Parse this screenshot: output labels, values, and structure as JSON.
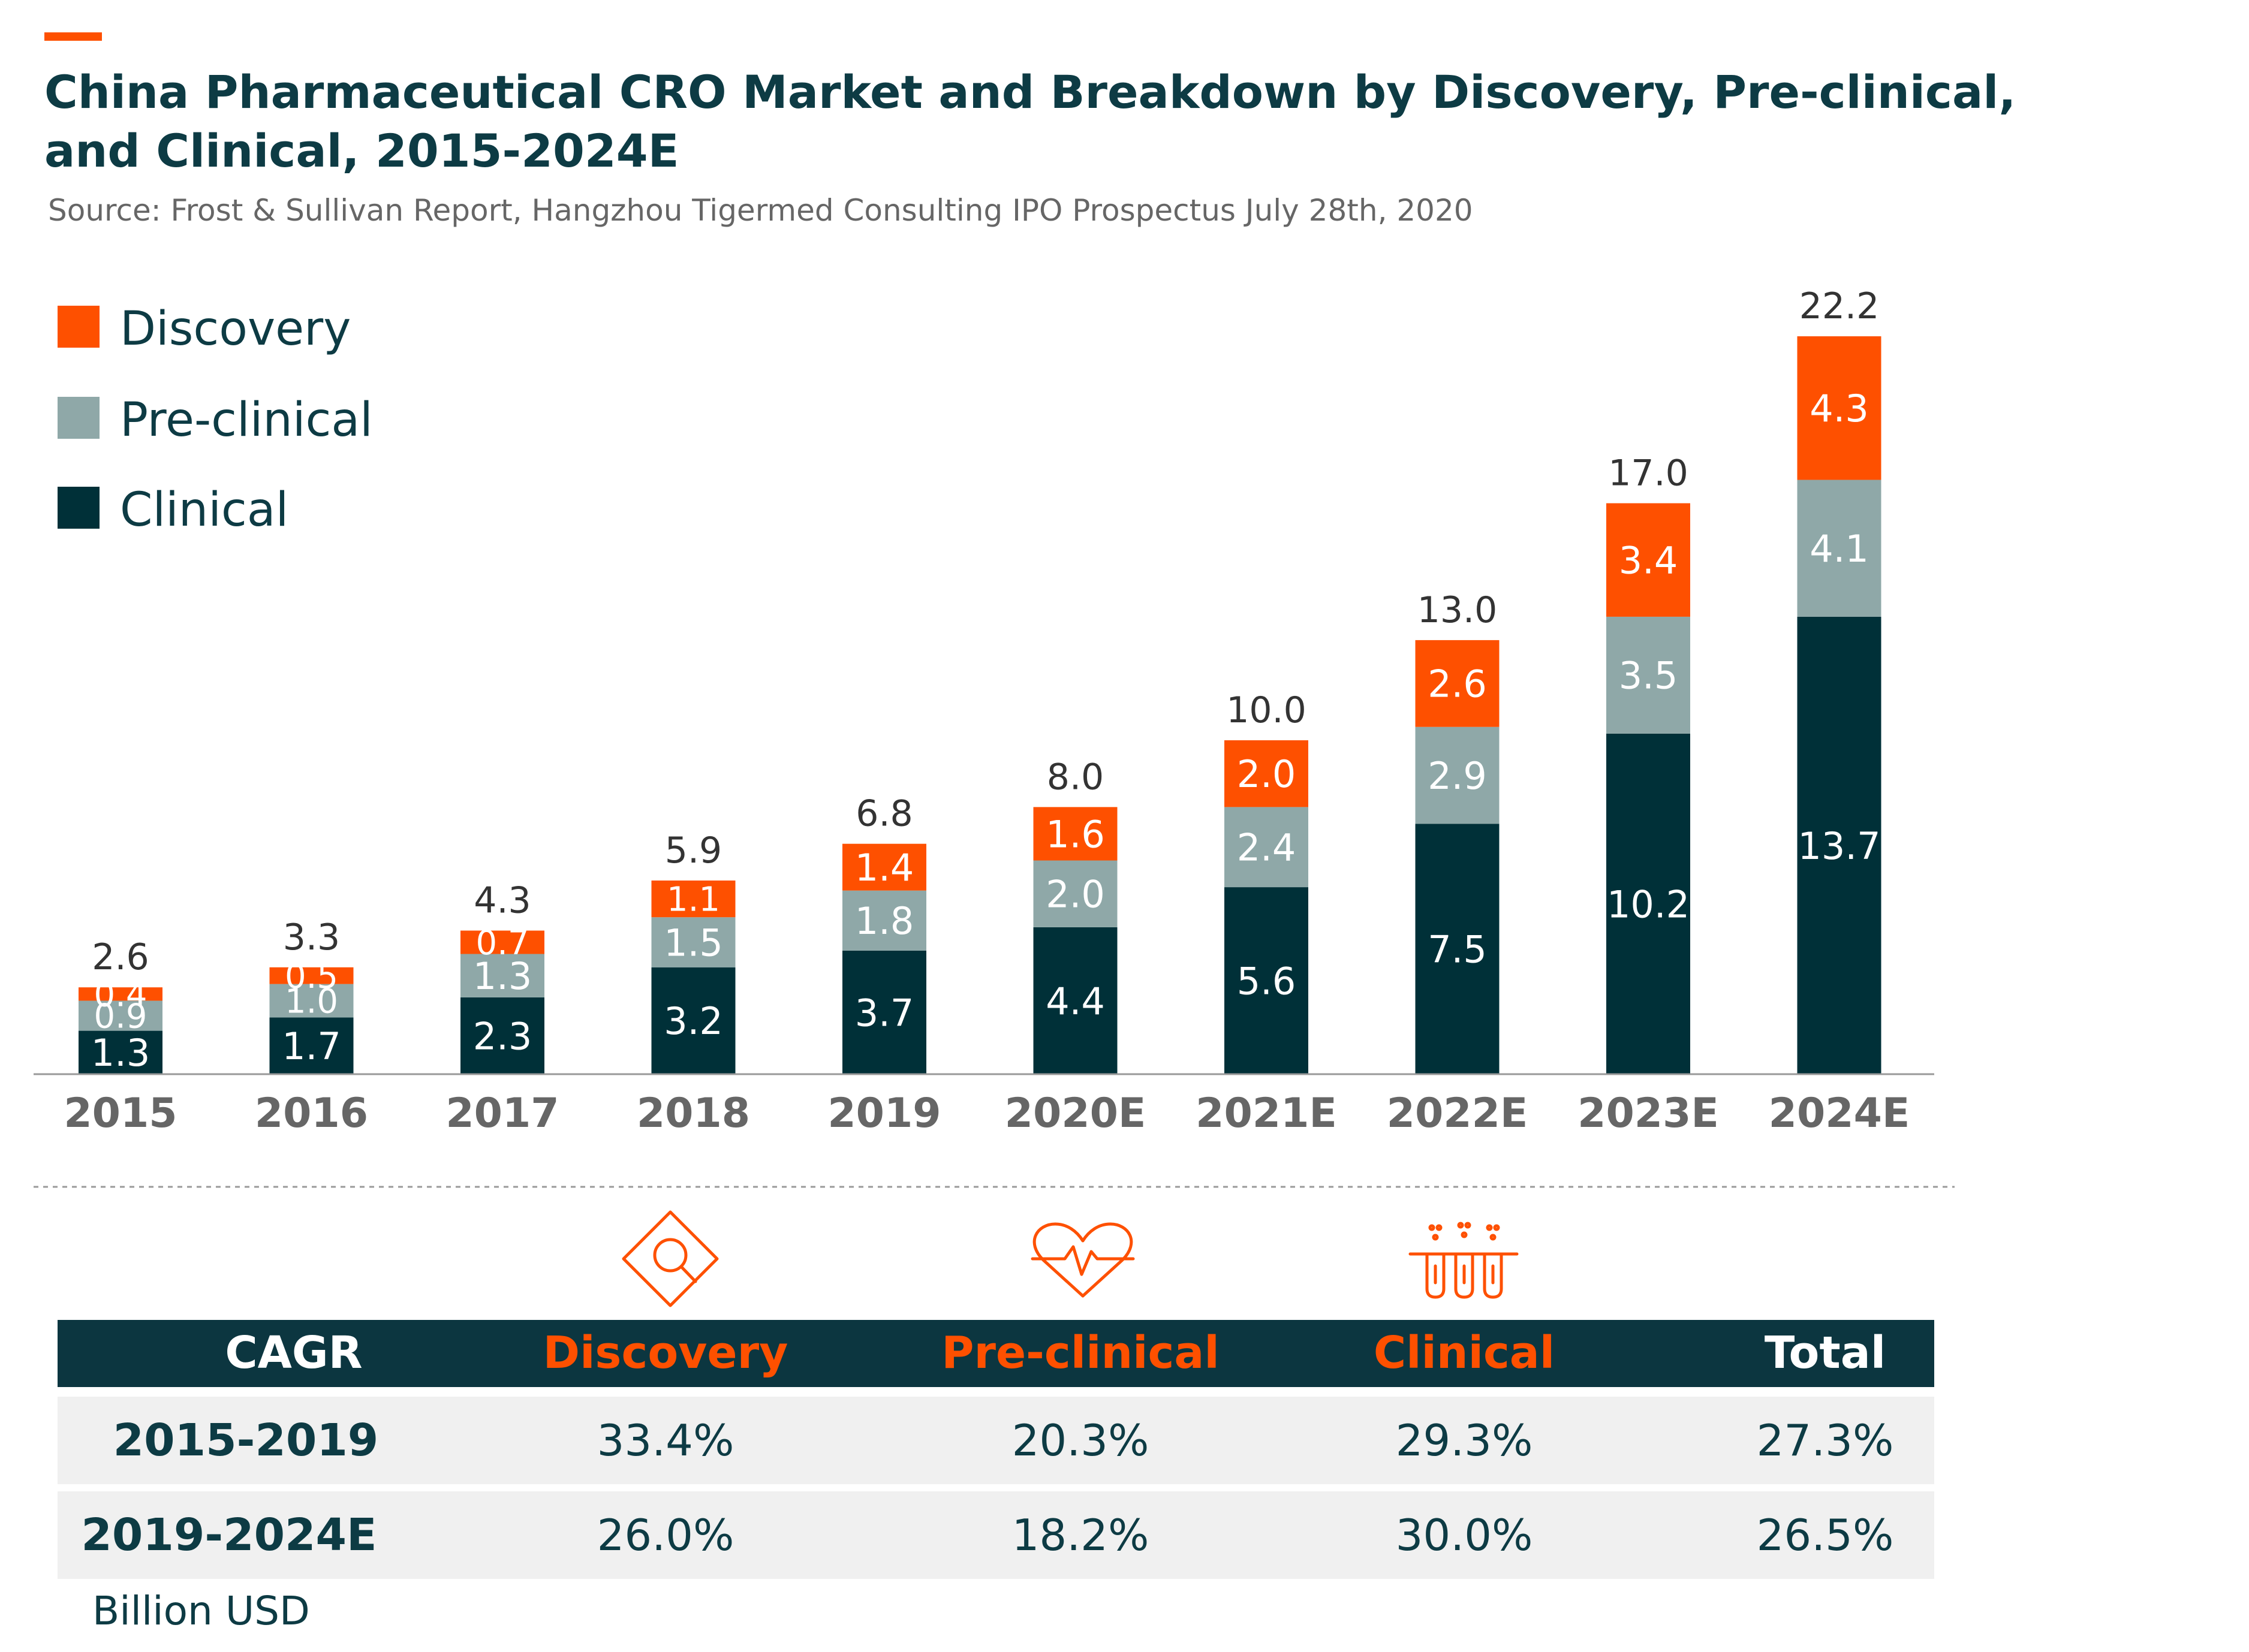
{
  "title_line1": "China Pharmaceutical CRO Market and Breakdown by Discovery, Pre-clinical,",
  "title_line2": "and Clinical, 2015-2024E",
  "source": "Source: Frost & Sullivan Report, Hangzhou Tigermed Consulting IPO Prospectus July 28th, 2020",
  "colors": {
    "discovery": "#fe5000",
    "preclinical": "#8fa8a8",
    "clinical": "#003038",
    "title": "#0d3b44",
    "axis_text": "#666666",
    "row_bg": "#f0f0f0"
  },
  "chart_data": {
    "type": "bar",
    "stacked": true,
    "unit": "Billion USD",
    "categories": [
      "2015",
      "2016",
      "2017",
      "2018",
      "2019",
      "2020E",
      "2021E",
      "2022E",
      "2023E",
      "2024E"
    ],
    "series": [
      {
        "name": "Clinical",
        "values": [
          1.3,
          1.7,
          2.3,
          3.2,
          3.7,
          4.4,
          5.6,
          7.5,
          10.2,
          13.7
        ]
      },
      {
        "name": "Pre-clinical",
        "values": [
          0.9,
          1.0,
          1.3,
          1.5,
          1.8,
          2.0,
          2.4,
          2.9,
          3.5,
          4.1
        ]
      },
      {
        "name": "Discovery",
        "values": [
          0.4,
          0.5,
          0.7,
          1.1,
          1.4,
          1.6,
          2.0,
          2.6,
          3.4,
          4.3
        ]
      }
    ],
    "totals": [
      "2.6",
      "3.3",
      "4.3",
      "5.9",
      "6.8",
      "8.0",
      "10.0",
      "13.0",
      "17.0",
      "22.2"
    ],
    "legend": [
      "Discovery",
      "Pre-clinical",
      "Clinical"
    ],
    "legend_position": "top-left",
    "grid": false,
    "y_axis_visible": false
  },
  "icons": [
    "discovery-magnifier-icon",
    "preclinical-heartbeat-icon",
    "clinical-test-tubes-icon"
  ],
  "table": {
    "headers": [
      "CAGR",
      "Discovery",
      "Pre-clinical",
      "Clinical",
      "Total"
    ],
    "rows": [
      {
        "period": "2015-2019",
        "discovery": "33.4%",
        "preclinical": "20.3%",
        "clinical": "29.3%",
        "total": "27.3%"
      },
      {
        "period": "2019-2024E",
        "discovery": "26.0%",
        "preclinical": "18.2%",
        "clinical": "30.0%",
        "total": "26.5%"
      }
    ]
  },
  "unit_label": "Billion USD"
}
